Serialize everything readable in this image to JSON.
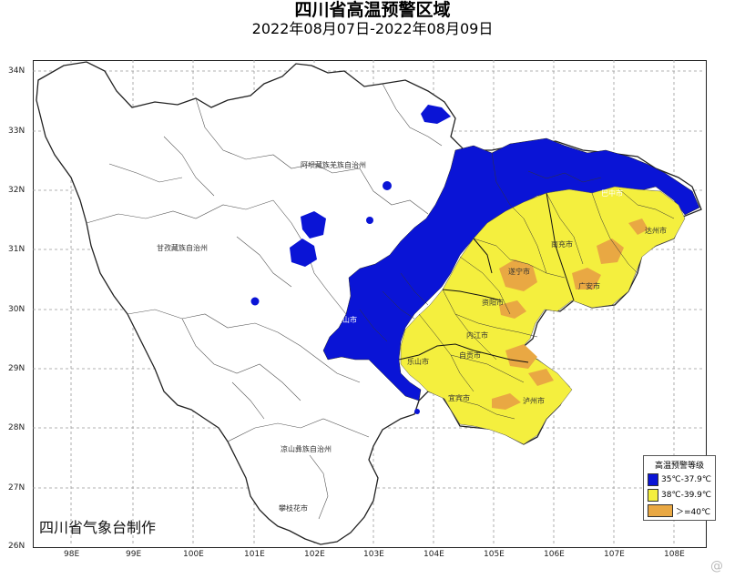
{
  "title": "四川省高温预警区域",
  "date_range": "2022年08月07日-2022年08月09日",
  "credit": "四川省气象台制作",
  "lat_labels": [
    "34N",
    "33N",
    "32N",
    "31N",
    "30N",
    "29N",
    "28N",
    "27N",
    "26N"
  ],
  "lon_labels": [
    "98E",
    "99E",
    "100E",
    "101E",
    "102E",
    "103E",
    "104E",
    "105E",
    "106E",
    "107E",
    "108E"
  ],
  "legend": {
    "title": "高温预警等级",
    "items": [
      {
        "label": "35℃-37.9℃",
        "color": "#0a14d6"
      },
      {
        "label": "38℃-39.9℃",
        "color": "#f4ef3e"
      },
      {
        "label": "＞=40℃",
        "color": "#e9a843"
      }
    ]
  },
  "region_labels": {
    "aba": "阿坝藏族羌族自治州",
    "ganzi": "甘孜藏族自治州",
    "liangshan": "凉山彝族自治州",
    "panzhihua": "攀枝花市",
    "bazhong": "巴中市",
    "dazhou": "达州市",
    "nanchong": "南充市",
    "suining": "遂宁市",
    "guangan": "广安市",
    "ziyang": "资阳市",
    "neijiang": "内江市",
    "zigong": "自贡市",
    "leshan": "乐山市",
    "yibin": "宜宾市",
    "luzhou": "泸州市",
    "meishan": "眉山市"
  },
  "watermark": "@"
}
